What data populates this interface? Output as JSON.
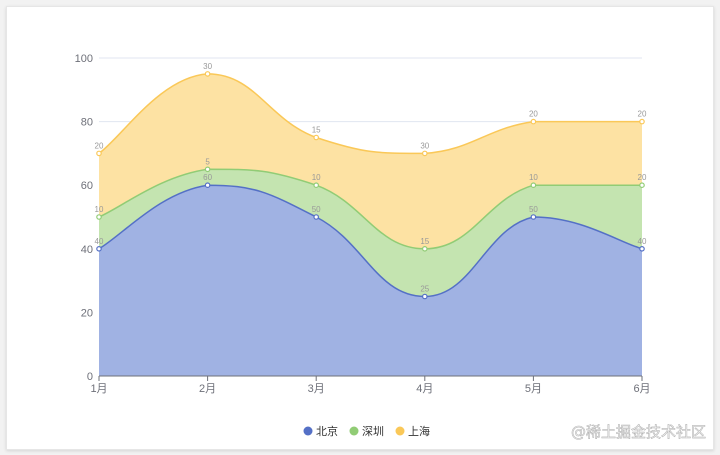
{
  "watermark": "@稀土掘金技术社区",
  "chart_data": {
    "type": "area",
    "stacked": true,
    "smooth": true,
    "categories": [
      "1月",
      "2月",
      "3月",
      "4月",
      "5月",
      "6月"
    ],
    "ylim": [
      0,
      100
    ],
    "yticks": [
      0,
      20,
      40,
      60,
      80,
      100
    ],
    "ytick_labels": [
      "0",
      "20",
      "40",
      "60",
      "80",
      "100"
    ],
    "grid": true,
    "legend_position": "bottom-center",
    "series": [
      {
        "name": "北京",
        "values": [
          40,
          60,
          50,
          25,
          50,
          40
        ],
        "color": "#5470c6",
        "fill": "#a0b2e3"
      },
      {
        "name": "深圳",
        "values": [
          10,
          5,
          10,
          15,
          10,
          20
        ],
        "color": "#91cc75",
        "fill": "#c4e4b0"
      },
      {
        "name": "上海",
        "values": [
          20,
          30,
          15,
          30,
          20,
          20
        ],
        "color": "#fac858",
        "fill": "#fde2a3"
      }
    ]
  }
}
